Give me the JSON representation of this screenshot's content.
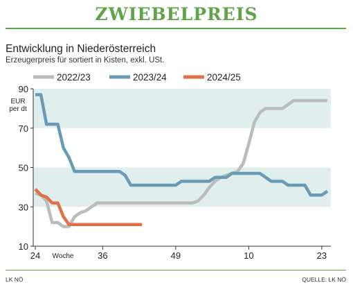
{
  "header": {
    "title": "ZWIEBELPREIS",
    "subtitle": "Entwicklung in Niederösterreich",
    "description": "Erzeugerpreis für sortiert in Kisten, exkl. USt."
  },
  "footer": {
    "left": "LK NÖ",
    "right": "QUELLE: LK NÖ"
  },
  "colors": {
    "accent": "#5fa447",
    "band": "#e1eeee",
    "axis": "#333333"
  },
  "chart_data": {
    "type": "line",
    "ylabel": "EUR per dt",
    "ylabel_lines": [
      "EUR",
      "per dt"
    ],
    "xlabel": "Woche",
    "ylim": [
      10,
      90
    ],
    "yticks": [
      10,
      30,
      50,
      70,
      90
    ],
    "bands": [
      [
        70,
        90
      ],
      [
        30,
        50
      ]
    ],
    "xticks": [
      "24",
      "36",
      "49",
      "10",
      "23"
    ],
    "legend_position": "top",
    "series": [
      {
        "name": "2022/23",
        "color": "#bbbbbb",
        "x": [
          0,
          1,
          2,
          3,
          4,
          5,
          6,
          7,
          8,
          9,
          10,
          11,
          12,
          13,
          14,
          15,
          16,
          17,
          18,
          19,
          20,
          21,
          22,
          23,
          24,
          25,
          26,
          27,
          28,
          29,
          30,
          31,
          32,
          33,
          34,
          35,
          36,
          37,
          38,
          39,
          40,
          41,
          42,
          43,
          44,
          45,
          46,
          47,
          48,
          49,
          50,
          51,
          52
        ],
        "values": [
          37,
          36,
          33,
          22,
          22,
          20,
          20,
          25,
          27,
          28,
          30,
          32,
          32,
          32,
          32,
          32,
          32,
          32,
          32,
          32,
          32,
          32,
          32,
          32,
          32,
          32,
          32,
          32,
          32,
          33,
          36,
          40,
          43,
          45,
          46,
          47,
          48,
          52,
          62,
          73,
          78,
          80,
          80,
          80,
          80,
          82,
          84,
          84,
          84,
          84,
          84,
          84,
          84
        ]
      },
      {
        "name": "2023/24",
        "color": "#6a9bb6",
        "x": [
          0,
          1,
          2,
          3,
          4,
          5,
          6,
          7,
          8,
          9,
          10,
          11,
          12,
          13,
          14,
          15,
          16,
          17,
          18,
          19,
          20,
          21,
          22,
          23,
          24,
          25,
          26,
          27,
          28,
          29,
          30,
          31,
          32,
          33,
          34,
          35,
          36,
          37,
          38,
          39,
          40,
          41,
          42,
          43,
          44,
          45,
          46,
          47,
          48,
          49,
          50,
          51,
          52
        ],
        "values": [
          87,
          87,
          72,
          72,
          72,
          60,
          55,
          48,
          48,
          48,
          48,
          48,
          48,
          48,
          48,
          48,
          46,
          41,
          41,
          41,
          41,
          41,
          41,
          41,
          41,
          41,
          43,
          43,
          43,
          43,
          43,
          43,
          45,
          45,
          45,
          47,
          47,
          47,
          47,
          47,
          47,
          45,
          43,
          43,
          43,
          41,
          41,
          41,
          41,
          36,
          36,
          36,
          38
        ]
      },
      {
        "name": "2024/25",
        "color": "#e07048",
        "x": [
          0,
          1,
          2,
          3,
          4,
          5,
          6,
          7,
          8,
          9,
          10,
          11,
          12,
          13,
          14,
          15,
          16,
          17,
          18,
          19
        ],
        "values": [
          39,
          36,
          35,
          32,
          32,
          25,
          21,
          21,
          21,
          21,
          21,
          21,
          21,
          21,
          21,
          21,
          21,
          21,
          21,
          21
        ]
      }
    ]
  }
}
